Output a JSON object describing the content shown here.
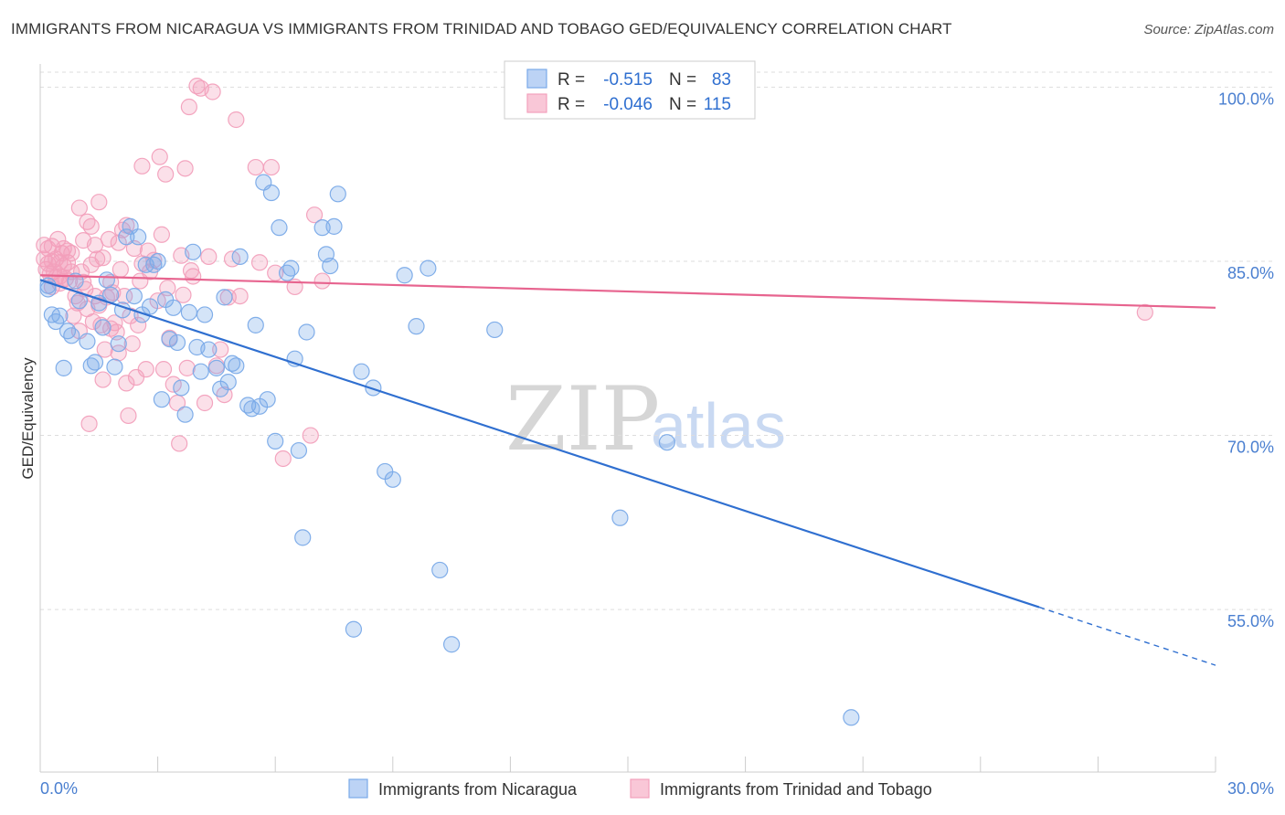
{
  "title": "IMMIGRANTS FROM NICARAGUA VS IMMIGRANTS FROM TRINIDAD AND TOBAGO GED/EQUIVALENCY CORRELATION CHART",
  "source": "Source: ZipAtlas.com",
  "watermark": {
    "part1": "ZIP",
    "part2": "atlas"
  },
  "chart_data": {
    "type": "scatter",
    "title": "IMMIGRANTS FROM NICARAGUA VS IMMIGRANTS FROM TRINIDAD AND TOBAGO GED/EQUIVALENCY CORRELATION CHART",
    "xlabel": "",
    "ylabel": "GED/Equivalency",
    "xlim": [
      0,
      30
    ],
    "ylim": [
      41,
      102
    ],
    "x_tick_labels": {
      "min": "0.0%",
      "max": "30.0%"
    },
    "y_ticks": [
      {
        "value": 100,
        "label": "100.0%"
      },
      {
        "value": 85,
        "label": "85.0%"
      },
      {
        "value": 70,
        "label": "70.0%"
      },
      {
        "value": 55,
        "label": "55.0%"
      }
    ],
    "grid": true,
    "stats": [
      {
        "r_label": "R =",
        "r_value": "-0.515",
        "n_label": "N =",
        "n_value": "83"
      },
      {
        "r_label": "R =",
        "r_value": "-0.046",
        "n_label": "N =",
        "n_value": "115"
      }
    ],
    "series": [
      {
        "name": "Immigrants from Nicaragua",
        "color": "#7aaae8",
        "line_color": "#2f6fd0",
        "trend": {
          "x0": 0.0,
          "y0": 83.4,
          "x1": 25.5,
          "y1": 55.2,
          "dash_to_x": 30.0,
          "dash_to_y": 50.2
        },
        "points": [
          [
            0.2,
            82.6
          ],
          [
            0.3,
            80.4
          ],
          [
            0.4,
            79.8
          ],
          [
            0.5,
            80.3
          ],
          [
            0.6,
            75.8
          ],
          [
            0.7,
            79.0
          ],
          [
            0.8,
            78.6
          ],
          [
            0.9,
            83.3
          ],
          [
            1.0,
            81.6
          ],
          [
            1.2,
            78.1
          ],
          [
            1.3,
            76.0
          ],
          [
            1.4,
            76.3
          ],
          [
            1.5,
            81.4
          ],
          [
            1.6,
            79.3
          ],
          [
            1.7,
            83.4
          ],
          [
            1.8,
            82.1
          ],
          [
            1.9,
            75.9
          ],
          [
            2.0,
            77.9
          ],
          [
            2.1,
            80.8
          ],
          [
            2.2,
            87.1
          ],
          [
            2.3,
            88.0
          ],
          [
            2.4,
            82.0
          ],
          [
            2.5,
            87.1
          ],
          [
            2.6,
            80.4
          ],
          [
            2.7,
            84.7
          ],
          [
            2.8,
            81.1
          ],
          [
            2.9,
            84.7
          ],
          [
            3.0,
            85.0
          ],
          [
            3.1,
            73.1
          ],
          [
            3.2,
            81.7
          ],
          [
            3.3,
            78.3
          ],
          [
            3.4,
            81.0
          ],
          [
            3.5,
            78.0
          ],
          [
            3.6,
            74.1
          ],
          [
            3.7,
            71.8
          ],
          [
            3.8,
            80.6
          ],
          [
            3.9,
            85.8
          ],
          [
            4.0,
            77.6
          ],
          [
            4.1,
            75.5
          ],
          [
            4.2,
            80.4
          ],
          [
            4.3,
            77.4
          ],
          [
            4.5,
            75.8
          ],
          [
            4.6,
            74.0
          ],
          [
            4.7,
            81.9
          ],
          [
            4.8,
            74.6
          ],
          [
            4.9,
            76.2
          ],
          [
            5.0,
            76.0
          ],
          [
            5.1,
            85.4
          ],
          [
            5.3,
            72.6
          ],
          [
            5.4,
            72.3
          ],
          [
            5.5,
            79.5
          ],
          [
            5.6,
            72.5
          ],
          [
            5.7,
            91.8
          ],
          [
            5.8,
            73.1
          ],
          [
            5.9,
            90.9
          ],
          [
            6.0,
            69.5
          ],
          [
            6.1,
            87.9
          ],
          [
            6.3,
            84.0
          ],
          [
            6.4,
            84.4
          ],
          [
            6.5,
            76.6
          ],
          [
            6.6,
            68.7
          ],
          [
            6.7,
            61.2
          ],
          [
            6.8,
            78.9
          ],
          [
            7.2,
            87.9
          ],
          [
            7.3,
            85.6
          ],
          [
            7.4,
            84.6
          ],
          [
            7.5,
            88.0
          ],
          [
            7.6,
            90.8
          ],
          [
            8.0,
            53.3
          ],
          [
            8.2,
            75.5
          ],
          [
            8.5,
            74.1
          ],
          [
            8.8,
            66.9
          ],
          [
            9.0,
            66.2
          ],
          [
            9.3,
            83.8
          ],
          [
            9.6,
            79.4
          ],
          [
            9.9,
            84.4
          ],
          [
            10.2,
            58.4
          ],
          [
            10.5,
            52.0
          ],
          [
            11.6,
            79.1
          ],
          [
            14.8,
            62.9
          ],
          [
            16.0,
            69.4
          ],
          [
            20.7,
            45.7
          ],
          [
            0.2,
            82.9
          ]
        ]
      },
      {
        "name": "Immigrants from Trinidad and Tobago",
        "color": "#f2a0bc",
        "line_color": "#e7648f",
        "trend": {
          "x0": 0.0,
          "y0": 83.8,
          "x1": 30.0,
          "y1": 81.0
        },
        "points": [
          [
            0.1,
            86.4
          ],
          [
            0.1,
            85.2
          ],
          [
            0.15,
            84.3
          ],
          [
            0.2,
            84.8
          ],
          [
            0.2,
            86.1
          ],
          [
            0.25,
            83.9
          ],
          [
            0.3,
            85.0
          ],
          [
            0.3,
            86.3
          ],
          [
            0.35,
            84.1
          ],
          [
            0.4,
            85.2
          ],
          [
            0.4,
            83.6
          ],
          [
            0.45,
            86.9
          ],
          [
            0.5,
            84.9
          ],
          [
            0.5,
            83.7
          ],
          [
            0.55,
            85.7
          ],
          [
            0.6,
            84.6
          ],
          [
            0.6,
            86.1
          ],
          [
            0.65,
            83.5
          ],
          [
            0.7,
            84.9
          ],
          [
            0.75,
            83.3
          ],
          [
            0.8,
            85.7
          ],
          [
            0.8,
            84.1
          ],
          [
            0.85,
            80.3
          ],
          [
            0.9,
            82.0
          ],
          [
            0.95,
            81.4
          ],
          [
            1.0,
            79.0
          ],
          [
            1.0,
            89.6
          ],
          [
            1.05,
            84.1
          ],
          [
            1.1,
            83.2
          ],
          [
            1.1,
            86.8
          ],
          [
            1.15,
            82.6
          ],
          [
            1.2,
            80.9
          ],
          [
            1.2,
            88.4
          ],
          [
            1.25,
            71.0
          ],
          [
            1.3,
            84.7
          ],
          [
            1.35,
            79.8
          ],
          [
            1.4,
            82.0
          ],
          [
            1.4,
            86.4
          ],
          [
            1.45,
            85.2
          ],
          [
            1.5,
            81.2
          ],
          [
            1.5,
            90.1
          ],
          [
            1.55,
            79.5
          ],
          [
            1.6,
            74.8
          ],
          [
            1.6,
            85.3
          ],
          [
            1.65,
            77.4
          ],
          [
            1.7,
            81.9
          ],
          [
            1.75,
            86.9
          ],
          [
            1.8,
            79.2
          ],
          [
            1.8,
            83.2
          ],
          [
            1.85,
            82.3
          ],
          [
            1.9,
            79.7
          ],
          [
            1.95,
            78.9
          ],
          [
            2.0,
            77.1
          ],
          [
            2.0,
            86.6
          ],
          [
            2.05,
            84.3
          ],
          [
            2.1,
            87.7
          ],
          [
            2.15,
            82.0
          ],
          [
            2.2,
            88.1
          ],
          [
            2.25,
            71.7
          ],
          [
            2.3,
            80.3
          ],
          [
            2.35,
            77.9
          ],
          [
            2.4,
            86.1
          ],
          [
            2.45,
            75.0
          ],
          [
            2.5,
            79.5
          ],
          [
            2.55,
            83.3
          ],
          [
            2.6,
            84.8
          ],
          [
            2.6,
            93.2
          ],
          [
            2.7,
            75.7
          ],
          [
            2.75,
            85.9
          ],
          [
            2.8,
            84.1
          ],
          [
            2.9,
            85.1
          ],
          [
            3.0,
            81.6
          ],
          [
            3.05,
            94.0
          ],
          [
            3.1,
            87.3
          ],
          [
            3.15,
            75.7
          ],
          [
            3.2,
            92.5
          ],
          [
            3.25,
            82.7
          ],
          [
            3.3,
            78.4
          ],
          [
            3.4,
            74.4
          ],
          [
            3.5,
            72.8
          ],
          [
            3.55,
            69.3
          ],
          [
            3.6,
            85.5
          ],
          [
            3.65,
            82.1
          ],
          [
            3.7,
            93.0
          ],
          [
            3.75,
            75.8
          ],
          [
            3.8,
            98.3
          ],
          [
            3.85,
            84.2
          ],
          [
            3.9,
            83.7
          ],
          [
            4.0,
            100.1
          ],
          [
            4.1,
            99.9
          ],
          [
            4.2,
            72.8
          ],
          [
            4.3,
            85.4
          ],
          [
            4.4,
            99.6
          ],
          [
            4.5,
            76.0
          ],
          [
            4.6,
            77.4
          ],
          [
            4.7,
            73.5
          ],
          [
            4.8,
            81.9
          ],
          [
            4.9,
            85.2
          ],
          [
            5.0,
            97.2
          ],
          [
            5.1,
            82.0
          ],
          [
            5.5,
            93.1
          ],
          [
            5.6,
            84.9
          ],
          [
            5.9,
            93.1
          ],
          [
            6.0,
            84.0
          ],
          [
            6.2,
            68.0
          ],
          [
            6.5,
            82.8
          ],
          [
            6.9,
            70.0
          ],
          [
            7.0,
            89.0
          ],
          [
            7.2,
            83.3
          ],
          [
            28.2,
            80.6
          ],
          [
            0.3,
            82.8
          ],
          [
            0.5,
            83.1
          ],
          [
            0.7,
            85.9
          ],
          [
            1.3,
            88.0
          ],
          [
            2.2,
            74.5
          ]
        ]
      }
    ]
  }
}
